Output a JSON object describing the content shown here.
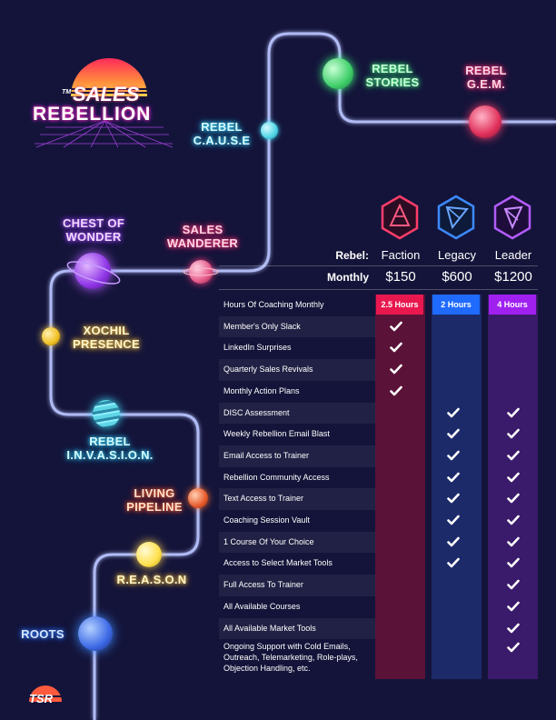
{
  "logo": {
    "tm": "TM",
    "line1": "SALES",
    "line2": "REBELLION"
  },
  "footer_logo": "TSR",
  "journey": {
    "rebel_stories": [
      "REBEL",
      "STORIES"
    ],
    "rebel_gem": [
      "REBEL",
      "G.E.M."
    ],
    "rebel_cause": [
      "REBEL",
      "C.A.U.S.E"
    ],
    "chest_of_wonder": [
      "CHEST OF",
      "WONDER"
    ],
    "sales_wanderer": [
      "SALES",
      "WANDERER"
    ],
    "xochil_presence": [
      "XOCHIL",
      "PRESENCE"
    ],
    "rebel_invasion": [
      "REBEL",
      "I.N.V.A.S.I.O.N."
    ],
    "living_pipeline": [
      "LIVING",
      "PIPELINE"
    ],
    "reason": "R.E.A.S.O.N",
    "roots": "ROOTS"
  },
  "table": {
    "rebel_label": "Rebel:",
    "monthly_label": "Monthly",
    "tiers": [
      {
        "name": "Faction",
        "price": "$150",
        "hours": "2.5 Hours",
        "color": "#e8184f"
      },
      {
        "name": "Legacy",
        "price": "$600",
        "hours": "2 Hours",
        "color": "#1f6bff"
      },
      {
        "name": "Leader",
        "price": "$1200",
        "hours": "4 Hours",
        "color": "#a020f0"
      }
    ],
    "features": [
      "Hours Of Coaching Monthly",
      "Member's Only Slack",
      "LinkedIn Surprises",
      "Quarterly Sales Revivals",
      "Monthly Action Plans",
      "DISC Assessment",
      "Weekly Rebellion Email Blast",
      "Email Access to Trainer",
      "Rebellion Community Access",
      "Text Access to Trainer",
      "Coaching Session Vault",
      "1 Course Of Your Choice",
      "Access to Select Market Tools",
      "Full Access To Trainer",
      "All Available Courses",
      "All Available Market Tools"
    ],
    "last_feature": [
      "Ongoing Support with Cold Emails,",
      "Outreach, Telemarketing, Role-plays,",
      "Objection Handling, etc."
    ]
  }
}
